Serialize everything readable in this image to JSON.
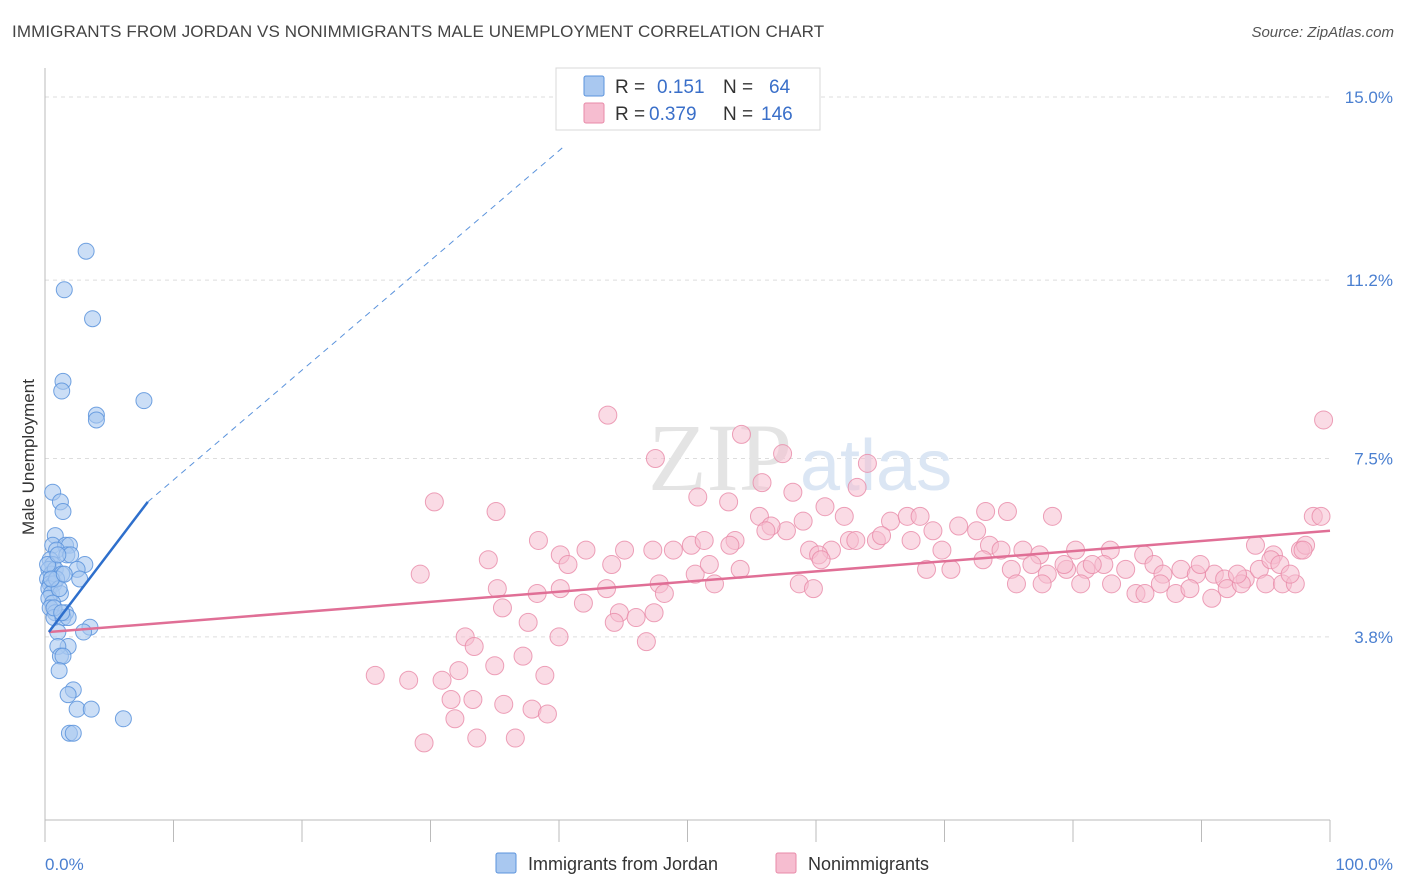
{
  "header": {
    "title": "IMMIGRANTS FROM JORDAN VS NONIMMIGRANTS MALE UNEMPLOYMENT CORRELATION CHART",
    "source": "Source: ZipAtlas.com"
  },
  "watermark": "ZIPatlas",
  "chart_data": {
    "type": "scatter",
    "title": "IMMIGRANTS FROM JORDAN VS NONIMMIGRANTS MALE UNEMPLOYMENT CORRELATION CHART",
    "xlabel": "",
    "ylabel": "Male Unemployment",
    "xlim": [
      0,
      100
    ],
    "ylim": [
      0,
      15.0
    ],
    "x_tick_labels": [
      "0.0%",
      "100.0%"
    ],
    "y_ticks": [
      3.8,
      7.5,
      11.2,
      15.0
    ],
    "y_tick_labels": [
      "3.8%",
      "7.5%",
      "11.2%",
      "15.0%"
    ],
    "grid": true,
    "legend_position": "top-center",
    "colors": {
      "jordan_fill": "#a9c8f0",
      "jordan_stroke": "#5b93dc",
      "jordan_line": "#2e6fcc",
      "non_fill": "#f6bdd0",
      "non_stroke": "#e88aa8",
      "non_line": "#e06f96"
    },
    "stats": [
      {
        "r_label": "R =",
        "r": "0.151",
        "n_label": "N =",
        "n": "64"
      },
      {
        "r_label": "R =",
        "r": "0.379",
        "n_label": "N =",
        "n": "146"
      }
    ],
    "series": [
      {
        "name": "Immigrants from Jordan",
        "trend": {
          "x": [
            0.3,
            8.0
          ],
          "y": [
            3.9,
            6.6
          ],
          "dashed_to": [
            40.5,
            14.0
          ]
        },
        "points": [
          [
            3.2,
            11.8
          ],
          [
            1.5,
            11.0
          ],
          [
            3.7,
            10.4
          ],
          [
            1.4,
            9.1
          ],
          [
            1.3,
            8.9
          ],
          [
            7.7,
            8.7
          ],
          [
            4.0,
            8.4
          ],
          [
            4.0,
            8.3
          ],
          [
            0.6,
            6.8
          ],
          [
            1.2,
            6.6
          ],
          [
            1.4,
            6.4
          ],
          [
            0.8,
            5.9
          ],
          [
            0.6,
            5.7
          ],
          [
            1.6,
            5.7
          ],
          [
            1.9,
            5.7
          ],
          [
            0.9,
            5.6
          ],
          [
            1.7,
            5.5
          ],
          [
            2.0,
            5.5
          ],
          [
            0.4,
            5.4
          ],
          [
            0.6,
            5.3
          ],
          [
            3.1,
            5.3
          ],
          [
            0.3,
            5.2
          ],
          [
            0.5,
            5.1
          ],
          [
            0.8,
            5.2
          ],
          [
            1.3,
            5.1
          ],
          [
            2.5,
            5.2
          ],
          [
            0.2,
            5.0
          ],
          [
            0.4,
            4.9
          ],
          [
            0.7,
            4.9
          ],
          [
            0.3,
            4.8
          ],
          [
            0.5,
            4.7
          ],
          [
            1.2,
            4.7
          ],
          [
            0.3,
            4.6
          ],
          [
            0.6,
            4.5
          ],
          [
            0.4,
            4.4
          ],
          [
            0.8,
            4.3
          ],
          [
            1.6,
            4.3
          ],
          [
            0.7,
            4.2
          ],
          [
            1.4,
            4.2
          ],
          [
            1.8,
            4.2
          ],
          [
            3.5,
            4.0
          ],
          [
            3.0,
            3.9
          ],
          [
            1.0,
            3.9
          ],
          [
            1.8,
            3.6
          ],
          [
            1.0,
            3.6
          ],
          [
            1.2,
            3.4
          ],
          [
            1.4,
            3.4
          ],
          [
            1.1,
            3.1
          ],
          [
            2.2,
            2.7
          ],
          [
            1.8,
            2.6
          ],
          [
            2.5,
            2.3
          ],
          [
            3.6,
            2.3
          ],
          [
            6.1,
            2.1
          ],
          [
            1.9,
            1.8
          ],
          [
            2.2,
            1.8
          ],
          [
            0.9,
            5.0
          ],
          [
            1.1,
            4.8
          ],
          [
            0.2,
            5.3
          ],
          [
            0.5,
            5.0
          ],
          [
            1.0,
            5.5
          ],
          [
            1.5,
            5.1
          ],
          [
            0.7,
            4.4
          ],
          [
            1.3,
            4.3
          ],
          [
            2.7,
            5.0
          ]
        ]
      },
      {
        "name": "Nonimmigrants",
        "trend": {
          "x": [
            0.3,
            100.0
          ],
          "y": [
            3.9,
            6.0
          ]
        },
        "points": [
          [
            43.8,
            8.4
          ],
          [
            47.5,
            7.5
          ],
          [
            54.2,
            8.0
          ],
          [
            57.4,
            7.6
          ],
          [
            55.8,
            7.0
          ],
          [
            64.0,
            7.4
          ],
          [
            63.2,
            6.9
          ],
          [
            99.5,
            8.3
          ],
          [
            30.3,
            6.6
          ],
          [
            35.1,
            6.4
          ],
          [
            50.8,
            6.7
          ],
          [
            53.2,
            6.6
          ],
          [
            58.2,
            6.8
          ],
          [
            60.7,
            6.5
          ],
          [
            62.2,
            6.3
          ],
          [
            57.7,
            6.0
          ],
          [
            59.0,
            6.2
          ],
          [
            55.6,
            6.3
          ],
          [
            56.5,
            6.1
          ],
          [
            65.8,
            6.2
          ],
          [
            67.1,
            6.3
          ],
          [
            68.1,
            6.3
          ],
          [
            73.2,
            6.4
          ],
          [
            74.9,
            6.4
          ],
          [
            78.4,
            6.3
          ],
          [
            98.7,
            6.3
          ],
          [
            99.3,
            6.3
          ],
          [
            38.4,
            5.8
          ],
          [
            40.1,
            5.5
          ],
          [
            42.1,
            5.6
          ],
          [
            45.1,
            5.6
          ],
          [
            47.3,
            5.6
          ],
          [
            48.9,
            5.6
          ],
          [
            50.3,
            5.7
          ],
          [
            51.3,
            5.8
          ],
          [
            53.7,
            5.8
          ],
          [
            56.1,
            6.0
          ],
          [
            59.5,
            5.6
          ],
          [
            61.2,
            5.6
          ],
          [
            62.6,
            5.8
          ],
          [
            63.1,
            5.8
          ],
          [
            64.7,
            5.8
          ],
          [
            67.4,
            5.8
          ],
          [
            69.1,
            6.0
          ],
          [
            71.1,
            6.1
          ],
          [
            72.5,
            6.0
          ],
          [
            73.5,
            5.7
          ],
          [
            74.4,
            5.6
          ],
          [
            76.1,
            5.6
          ],
          [
            77.4,
            5.5
          ],
          [
            80.2,
            5.6
          ],
          [
            82.9,
            5.6
          ],
          [
            85.5,
            5.5
          ],
          [
            94.2,
            5.7
          ],
          [
            95.6,
            5.5
          ],
          [
            97.7,
            5.6
          ],
          [
            98.1,
            5.7
          ],
          [
            34.5,
            5.4
          ],
          [
            40.7,
            5.3
          ],
          [
            44.1,
            5.3
          ],
          [
            50.6,
            5.1
          ],
          [
            51.7,
            5.3
          ],
          [
            68.6,
            5.2
          ],
          [
            73.0,
            5.4
          ],
          [
            75.2,
            5.2
          ],
          [
            78.0,
            5.1
          ],
          [
            79.5,
            5.2
          ],
          [
            81.0,
            5.2
          ],
          [
            82.4,
            5.3
          ],
          [
            84.1,
            5.2
          ],
          [
            86.3,
            5.3
          ],
          [
            87.0,
            5.1
          ],
          [
            88.4,
            5.2
          ],
          [
            89.6,
            5.1
          ],
          [
            91.0,
            5.1
          ],
          [
            91.8,
            5.0
          ],
          [
            93.4,
            5.0
          ],
          [
            94.5,
            5.2
          ],
          [
            95.4,
            5.4
          ],
          [
            96.1,
            5.3
          ],
          [
            29.2,
            5.1
          ],
          [
            35.2,
            4.8
          ],
          [
            38.3,
            4.7
          ],
          [
            40.1,
            4.8
          ],
          [
            43.7,
            4.8
          ],
          [
            47.8,
            4.9
          ],
          [
            52.1,
            4.9
          ],
          [
            58.7,
            4.9
          ],
          [
            59.8,
            4.8
          ],
          [
            75.6,
            4.9
          ],
          [
            77.6,
            4.9
          ],
          [
            80.6,
            4.9
          ],
          [
            83.0,
            4.9
          ],
          [
            84.9,
            4.7
          ],
          [
            85.6,
            4.7
          ],
          [
            88.0,
            4.7
          ],
          [
            89.1,
            4.8
          ],
          [
            90.8,
            4.6
          ],
          [
            92.0,
            4.8
          ],
          [
            93.1,
            4.9
          ],
          [
            95.0,
            4.9
          ],
          [
            96.3,
            4.9
          ],
          [
            97.3,
            4.9
          ],
          [
            35.6,
            4.4
          ],
          [
            41.9,
            4.5
          ],
          [
            44.7,
            4.3
          ],
          [
            47.4,
            4.3
          ],
          [
            37.6,
            4.1
          ],
          [
            44.3,
            4.1
          ],
          [
            46.0,
            4.2
          ],
          [
            32.7,
            3.8
          ],
          [
            40.0,
            3.8
          ],
          [
            46.8,
            3.7
          ],
          [
            33.4,
            3.6
          ],
          [
            37.2,
            3.4
          ],
          [
            35.0,
            3.2
          ],
          [
            25.7,
            3.0
          ],
          [
            32.2,
            3.1
          ],
          [
            38.9,
            3.0
          ],
          [
            28.3,
            2.9
          ],
          [
            30.9,
            2.9
          ],
          [
            33.3,
            2.5
          ],
          [
            31.6,
            2.5
          ],
          [
            35.7,
            2.4
          ],
          [
            37.9,
            2.3
          ],
          [
            31.9,
            2.1
          ],
          [
            39.1,
            2.2
          ],
          [
            33.6,
            1.7
          ],
          [
            29.5,
            1.6
          ],
          [
            36.6,
            1.7
          ],
          [
            48.2,
            4.7
          ],
          [
            53.3,
            5.7
          ],
          [
            54.1,
            5.2
          ],
          [
            60.2,
            5.5
          ],
          [
            65.1,
            5.9
          ],
          [
            69.8,
            5.6
          ],
          [
            70.5,
            5.2
          ],
          [
            76.8,
            5.3
          ],
          [
            79.3,
            5.3
          ],
          [
            81.5,
            5.3
          ],
          [
            86.8,
            4.9
          ],
          [
            89.9,
            5.3
          ],
          [
            92.8,
            5.1
          ],
          [
            96.9,
            5.1
          ],
          [
            97.9,
            5.6
          ],
          [
            60.4,
            5.4
          ]
        ]
      }
    ]
  },
  "legend": {
    "items": [
      {
        "label": "Immigrants from Jordan"
      },
      {
        "label": "Nonimmigrants"
      }
    ]
  }
}
